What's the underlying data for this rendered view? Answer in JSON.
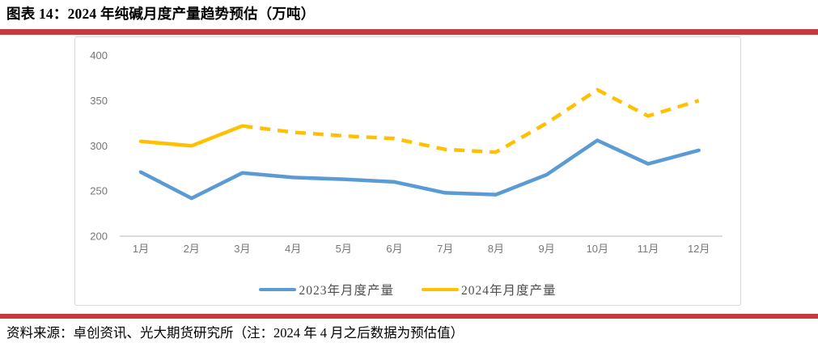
{
  "header": {
    "title": "图表 14：2024 年纯碱月度产量趋势预估（万吨）"
  },
  "footer": {
    "source_note": "资料来源：卓创资讯、光大期货研究所（注：2024 年 4 月之后数据为预估值）"
  },
  "colors": {
    "accent_red": "#C53A3E",
    "axis_line": "#C6C6C6",
    "tick_text": "#777777",
    "card_border": "#D8D8D8"
  },
  "chart_data": {
    "type": "line",
    "title": "2024 年纯碱月度产量趋势预估（万吨）",
    "categories": [
      "1月",
      "2月",
      "3月",
      "4月",
      "5月",
      "6月",
      "7月",
      "8月",
      "9月",
      "10月",
      "11月",
      "12月"
    ],
    "series": [
      {
        "name": "2023年月度产量",
        "color": "#5B9BD5",
        "style": "solid",
        "values": [
          271,
          242,
          270,
          265,
          263,
          260,
          248,
          246,
          268,
          306,
          280,
          295
        ]
      },
      {
        "name": "2024年月度产量",
        "color": "#FFC000",
        "style": "solid_then_dashed",
        "dash_from_index": 2,
        "values": [
          305,
          300,
          322,
          315,
          311,
          308,
          296,
          293,
          325,
          362,
          333,
          350
        ]
      }
    ],
    "ylim": [
      200,
      400
    ],
    "yticks": [
      200,
      250,
      300,
      350,
      400
    ],
    "grid": false,
    "legend_position": "bottom"
  }
}
